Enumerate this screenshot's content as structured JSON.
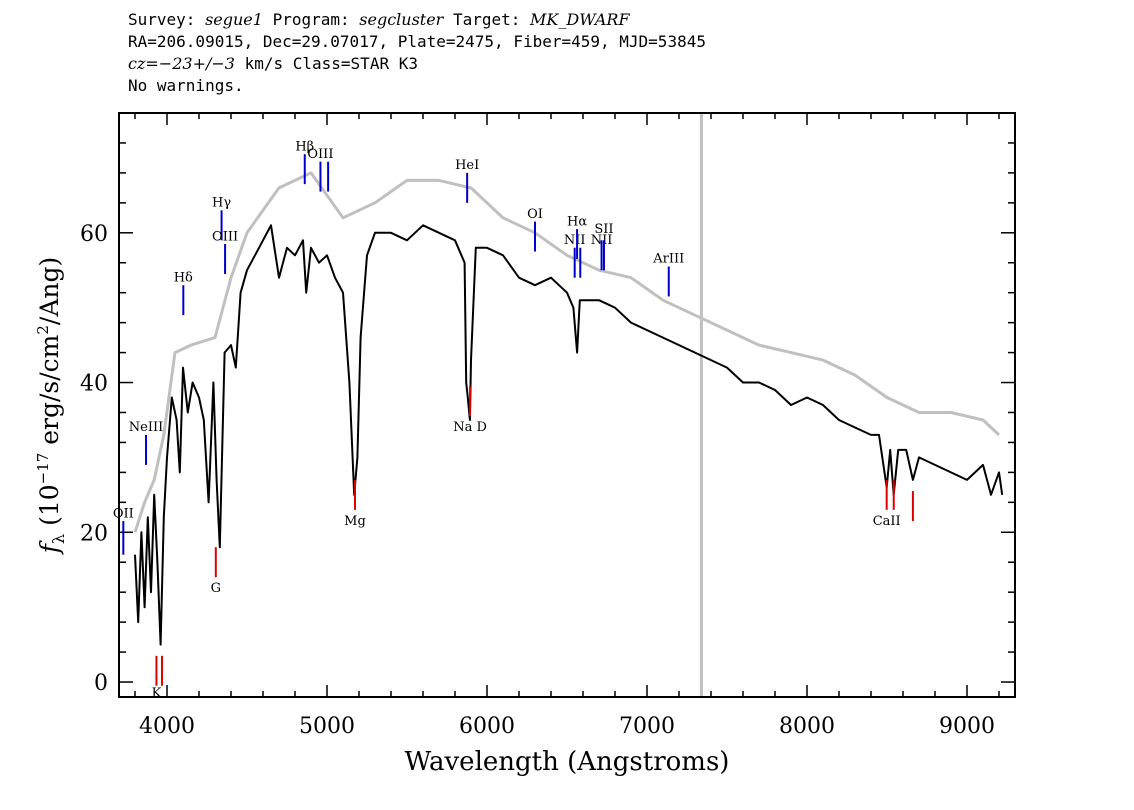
{
  "header": {
    "survey_label": "Survey: ",
    "survey": "segue1",
    "program_label": " Program: ",
    "program": "segcluster",
    "target_label": " Target: ",
    "target": "MK_DWARF",
    "line2": "RA=206.09015, Dec=29.07017, Plate=2475, Fiber=459, MJD=53845",
    "cz_italic": "cz=−23+/−3",
    "cz_rest": " km/s Class=STAR K3",
    "line4": "No warnings."
  },
  "chart_data": {
    "type": "line",
    "xlabel": "Wavelength (Angstroms)",
    "ylabel": "f_λ (10^-17 erg/s/cm^2/Ang)",
    "xlim": [
      3700,
      9300
    ],
    "ylim": [
      -2,
      76
    ],
    "xticks": [
      4000,
      5000,
      6000,
      7000,
      8000,
      9000
    ],
    "yticks": [
      0,
      20,
      40,
      60
    ],
    "marker_line": {
      "x": 7340,
      "color": "#c0c0c0"
    },
    "series": [
      {
        "color": "#000000",
        "x": [
          3800,
          3820,
          3840,
          3860,
          3880,
          3900,
          3920,
          3940,
          3960,
          3980,
          4000,
          4030,
          4060,
          4080,
          4100,
          4130,
          4160,
          4200,
          4230,
          4260,
          4290,
          4310,
          4330,
          4360,
          4400,
          4430,
          4460,
          4500,
          4550,
          4600,
          4650,
          4700,
          4750,
          4800,
          4850,
          4870,
          4900,
          4950,
          5000,
          5050,
          5100,
          5140,
          5170,
          5190,
          5210,
          5250,
          5300,
          5400,
          5500,
          5600,
          5700,
          5800,
          5860,
          5870,
          5880,
          5893,
          5900,
          5930,
          6000,
          6100,
          6200,
          6300,
          6400,
          6500,
          6540,
          6563,
          6580,
          6600,
          6700,
          6800,
          6900,
          7000,
          7100,
          7200,
          7300,
          7400,
          7500,
          7600,
          7700,
          7800,
          7900,
          8000,
          8100,
          8200,
          8300,
          8400,
          8450,
          8498,
          8520,
          8542,
          8570,
          8620,
          8662,
          8700,
          8800,
          8900,
          9000,
          9100,
          9150,
          9200,
          9220
        ],
        "y": [
          17,
          8,
          20,
          10,
          22,
          12,
          25,
          16,
          5,
          22,
          30,
          38,
          35,
          28,
          42,
          36,
          40,
          38,
          35,
          24,
          40,
          27,
          18,
          44,
          45,
          42,
          52,
          55,
          57,
          59,
          61,
          54,
          58,
          57,
          59,
          52,
          58,
          56,
          57,
          54,
          52,
          40,
          25,
          30,
          46,
          57,
          60,
          60,
          59,
          61,
          60,
          59,
          56,
          40,
          38,
          35,
          43,
          58,
          58,
          57,
          54,
          53,
          54,
          52,
          50,
          44,
          51,
          51,
          51,
          50,
          48,
          47,
          46,
          45,
          44,
          43,
          42,
          40,
          40,
          39,
          37,
          38,
          37,
          35,
          34,
          33,
          33,
          26,
          31,
          25,
          31,
          31,
          27,
          30,
          29,
          28,
          27,
          29,
          25,
          28,
          25
        ]
      },
      {
        "color": "#c0c0c0",
        "x": [
          3800,
          3860,
          3920,
          3980,
          4050,
          4150,
          4300,
          4400,
          4500,
          4600,
          4700,
          4800,
          4900,
          5000,
          5100,
          5300,
          5500,
          5700,
          5900,
          6100,
          6300,
          6500,
          6700,
          6900,
          7100,
          7300,
          7500,
          7700,
          7900,
          8100,
          8300,
          8500,
          8700,
          8900,
          9100,
          9200
        ],
        "y": [
          20,
          24,
          27,
          33,
          44,
          45,
          46,
          54,
          60,
          63,
          66,
          67,
          68,
          65,
          62,
          64,
          67,
          67,
          66,
          62,
          60,
          57,
          55,
          54,
          51,
          49,
          47,
          45,
          44,
          43,
          41,
          38,
          36,
          36,
          35,
          33
        ]
      }
    ],
    "emission_lines": [
      {
        "name": "OII",
        "x": 3727,
        "y0": 17,
        "y1": 21.5,
        "label_y": 22
      },
      {
        "name": "NeIII",
        "x": 3869,
        "y0": 29,
        "y1": 33,
        "label_y": 33.5
      },
      {
        "name": "Hδ",
        "x": 4102,
        "y0": 49,
        "y1": 53,
        "label_y": 53.5
      },
      {
        "name": "Hγ",
        "x": 4341,
        "y0": 59,
        "y1": 63,
        "label_y": 63.5
      },
      {
        "name": "OIII",
        "x": 4363,
        "y0": 54.5,
        "y1": 58.5,
        "label_y": 59
      },
      {
        "name": "Hβ",
        "x": 4861,
        "y0": 66.5,
        "y1": 70.5,
        "label_y": 71
      },
      {
        "name": "OIII",
        "x": 4959,
        "y0": 65.5,
        "y1": 69.5,
        "label_y": 70
      },
      {
        "name": "OIII",
        "x": 5007,
        "y0": 65.5,
        "y1": 69.5,
        "label_y": null
      },
      {
        "name": "HeI",
        "x": 5876,
        "y0": 64,
        "y1": 68,
        "label_y": 68.5
      },
      {
        "name": "OI",
        "x": 6300,
        "y0": 57.5,
        "y1": 61.5,
        "label_y": 62
      },
      {
        "name": "NII",
        "x": 6548,
        "y0": 54,
        "y1": 58,
        "label_y": 58.5
      },
      {
        "name": "Hα",
        "x": 6563,
        "y0": 56.5,
        "y1": 60.5,
        "label_y": 61
      },
      {
        "name": "NII",
        "x": 6583,
        "y0": 54,
        "y1": 58,
        "label_y": null
      },
      {
        "name": "NII",
        "x": 6716,
        "y0": 55,
        "y1": 59,
        "label_y": 58.5
      },
      {
        "name": "SII",
        "x": 6731,
        "y0": 55,
        "y1": 59,
        "label_y": 60
      },
      {
        "name": "ArIII",
        "x": 7136,
        "y0": 51.5,
        "y1": 55.5,
        "label_y": 56
      }
    ],
    "absorption_lines": [
      {
        "name": "K",
        "x": 3934,
        "y0": -0.5,
        "y1": 3.5,
        "label_y": -2
      },
      {
        "name": "H",
        "x": 3969,
        "y0": -0.5,
        "y1": 3.5,
        "label_y": null
      },
      {
        "name": "G",
        "x": 4305,
        "y0": 14,
        "y1": 18,
        "label_y": 12
      },
      {
        "name": "Mg",
        "x": 5175,
        "y0": 23,
        "y1": 27,
        "label_y": 21
      },
      {
        "name": "Na D",
        "x": 5894,
        "y0": 35.5,
        "y1": 39.5,
        "label_y": 33.5
      },
      {
        "name": "CaII",
        "x": 8498,
        "y0": 23,
        "y1": 27,
        "label_y": 21
      },
      {
        "name": "CaII",
        "x": 8542,
        "y0": 23,
        "y1": 27,
        "label_y": null
      },
      {
        "name": "CaII",
        "x": 8662,
        "y0": 21.5,
        "y1": 25.5,
        "label_y": null
      }
    ],
    "line_label_colors": {
      "emission": "#0000cc",
      "absorption": "#dd0000"
    }
  }
}
